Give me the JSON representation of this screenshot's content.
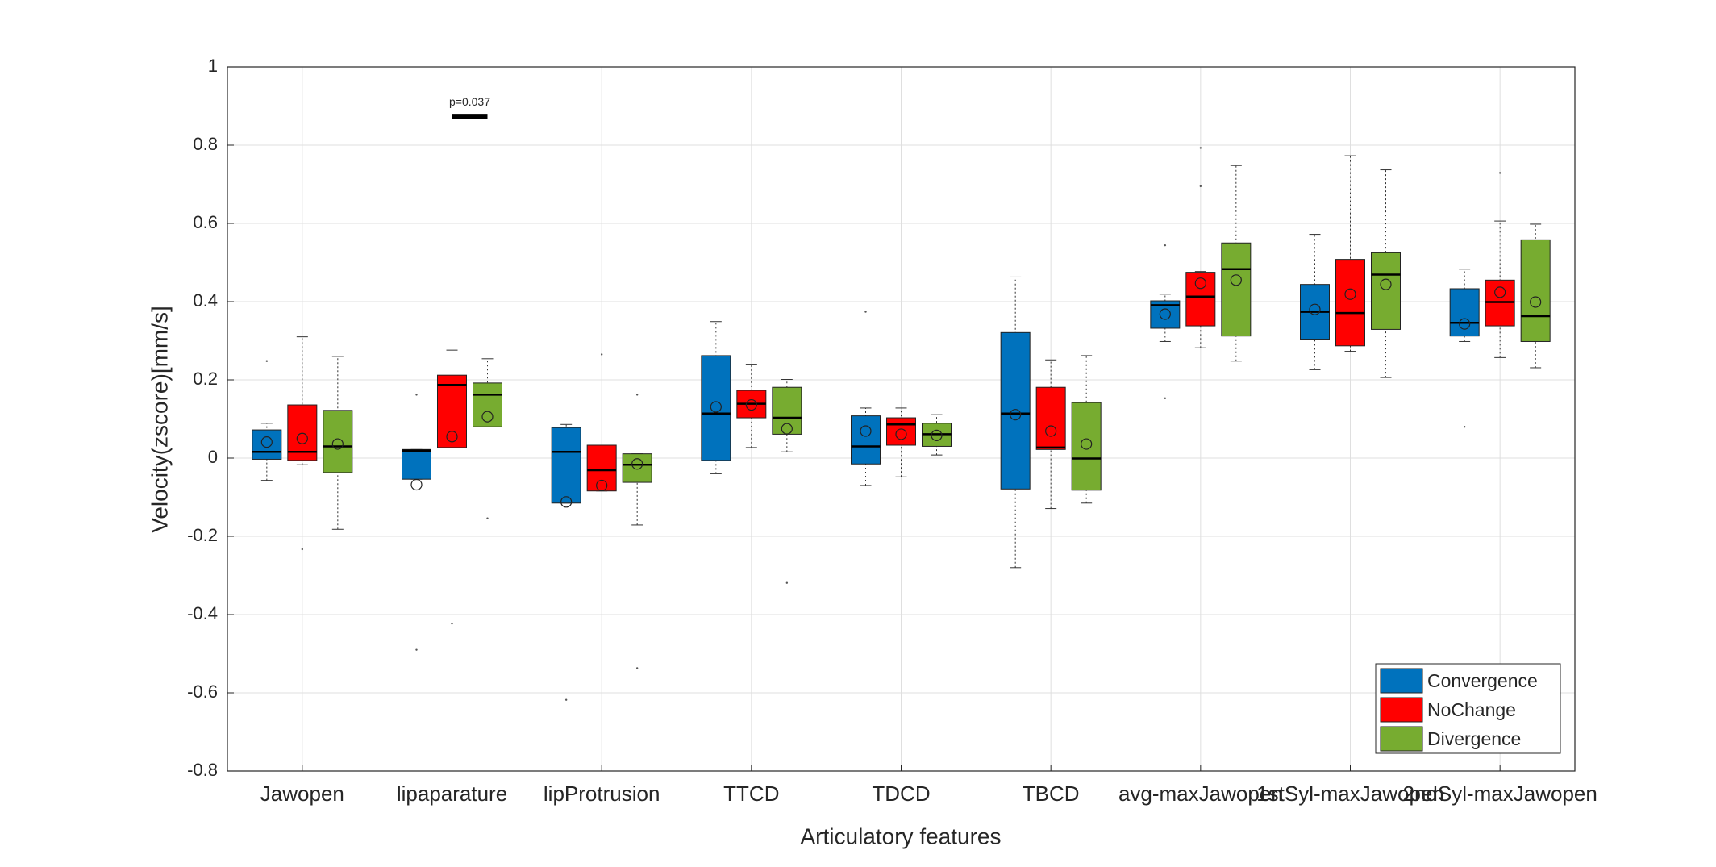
{
  "chart_data": {
    "type": "boxplot",
    "xlabel": "Articulatory features",
    "ylabel": "Velocity(zscore)[mm/s]",
    "categories": [
      "Jawopen",
      "lipaparature",
      "lipProtrusion",
      "TTCD",
      "TDCD",
      "TBCD",
      "avg-maxJawopen",
      "1stSyl-maxJawopen",
      "2ndSyl-maxJawopen"
    ],
    "ylim": [
      -0.8,
      1
    ],
    "yticks": [
      -0.8,
      -0.6,
      -0.4,
      -0.2,
      0,
      0.2,
      0.4,
      0.6,
      0.8,
      1
    ],
    "grid": true,
    "legend": "southeast",
    "annotation": {
      "text": "p=0.037",
      "y": 0.874
    },
    "series": [
      {
        "name": "Convergence",
        "color": "#0072BD",
        "boxes": [
          {
            "whislo": -0.057,
            "q1": -0.003,
            "med": 0.016,
            "q3": 0.072,
            "whishi": 0.089,
            "mean": 0.041,
            "fliers": [
              0.248
            ]
          },
          {
            "whislo": -0.054,
            "q1": -0.054,
            "med": 0.019,
            "q3": 0.022,
            "whishi": 0.022,
            "mean": -0.068,
            "fliers": [
              0.162,
              -0.49
            ]
          },
          {
            "whislo": -0.115,
            "q1": -0.115,
            "med": 0.016,
            "q3": 0.078,
            "whishi": 0.086,
            "mean": -0.112,
            "fliers": [
              -0.618
            ]
          },
          {
            "whislo": -0.04,
            "q1": -0.006,
            "med": 0.114,
            "q3": 0.262,
            "whishi": 0.349,
            "mean": 0.131,
            "fliers": []
          },
          {
            "whislo": -0.07,
            "q1": -0.015,
            "med": 0.03,
            "q3": 0.108,
            "whishi": 0.128,
            "mean": 0.069,
            "fliers": [
              0.374
            ]
          },
          {
            "whislo": -0.28,
            "q1": -0.079,
            "med": 0.114,
            "q3": 0.321,
            "whishi": 0.463,
            "mean": 0.111,
            "fliers": []
          },
          {
            "whislo": 0.298,
            "q1": 0.332,
            "med": 0.391,
            "q3": 0.402,
            "whishi": 0.419,
            "mean": 0.368,
            "fliers": [
              0.544,
              0.153
            ]
          },
          {
            "whislo": 0.226,
            "q1": 0.304,
            "med": 0.374,
            "q3": 0.444,
            "whishi": 0.572,
            "mean": 0.38,
            "fliers": []
          },
          {
            "whislo": 0.298,
            "q1": 0.312,
            "med": 0.346,
            "q3": 0.433,
            "whishi": 0.483,
            "mean": 0.343,
            "fliers": [
              0.08
            ]
          }
        ]
      },
      {
        "name": "NoChange",
        "color": "#FF0000",
        "boxes": [
          {
            "whislo": -0.017,
            "q1": -0.006,
            "med": 0.016,
            "q3": 0.136,
            "whishi": 0.31,
            "mean": 0.05,
            "fliers": [
              -0.233
            ]
          },
          {
            "whislo": 0.027,
            "q1": 0.027,
            "med": 0.187,
            "q3": 0.212,
            "whishi": 0.276,
            "mean": 0.055,
            "fliers": [
              -0.423
            ]
          },
          {
            "whislo": -0.084,
            "q1": -0.084,
            "med": -0.031,
            "q3": 0.033,
            "whishi": 0.033,
            "mean": -0.07,
            "fliers": [
              0.265
            ]
          },
          {
            "whislo": 0.027,
            "q1": 0.103,
            "med": 0.139,
            "q3": 0.173,
            "whishi": 0.24,
            "mean": 0.136,
            "fliers": []
          },
          {
            "whislo": -0.048,
            "q1": 0.033,
            "med": 0.086,
            "q3": 0.103,
            "whishi": 0.128,
            "mean": 0.061,
            "fliers": []
          },
          {
            "whislo": -0.129,
            "q1": 0.022,
            "med": 0.027,
            "q3": 0.181,
            "whishi": 0.251,
            "mean": 0.069,
            "fliers": []
          },
          {
            "whislo": 0.282,
            "q1": 0.338,
            "med": 0.413,
            "q3": 0.475,
            "whishi": 0.477,
            "mean": 0.447,
            "fliers": [
              0.793,
              0.695
            ]
          },
          {
            "whislo": 0.273,
            "q1": 0.287,
            "med": 0.371,
            "q3": 0.508,
            "whishi": 0.773,
            "mean": 0.419,
            "fliers": []
          },
          {
            "whislo": 0.257,
            "q1": 0.338,
            "med": 0.399,
            "q3": 0.455,
            "whishi": 0.606,
            "mean": 0.424,
            "fliers": [
              0.729
            ]
          }
        ]
      },
      {
        "name": "Divergence",
        "color": "#77AC30",
        "boxes": [
          {
            "whislo": -0.182,
            "q1": -0.037,
            "med": 0.03,
            "q3": 0.122,
            "whishi": 0.26,
            "mean": 0.036,
            "fliers": []
          },
          {
            "whislo": 0.08,
            "q1": 0.08,
            "med": 0.162,
            "q3": 0.192,
            "whishi": 0.254,
            "mean": 0.106,
            "fliers": [
              -0.154
            ]
          },
          {
            "whislo": -0.171,
            "q1": -0.062,
            "med": -0.017,
            "q3": 0.011,
            "whishi": 0.011,
            "mean": -0.015,
            "fliers": [
              0.162,
              -0.537
            ]
          },
          {
            "whislo": 0.016,
            "q1": 0.061,
            "med": 0.103,
            "q3": 0.181,
            "whishi": 0.201,
            "mean": 0.075,
            "fliers": [
              -0.319
            ]
          },
          {
            "whislo": 0.008,
            "q1": 0.03,
            "med": 0.061,
            "q3": 0.089,
            "whishi": 0.111,
            "mean": 0.058,
            "fliers": []
          },
          {
            "whislo": -0.115,
            "q1": -0.082,
            "med": -0.001,
            "q3": 0.142,
            "whishi": 0.262,
            "mean": 0.036,
            "fliers": []
          },
          {
            "whislo": 0.248,
            "q1": 0.312,
            "med": 0.483,
            "q3": 0.55,
            "whishi": 0.748,
            "mean": 0.455,
            "fliers": []
          },
          {
            "whislo": 0.206,
            "q1": 0.329,
            "med": 0.469,
            "q3": 0.525,
            "whishi": 0.737,
            "mean": 0.444,
            "fliers": []
          },
          {
            "whislo": 0.231,
            "q1": 0.298,
            "med": 0.363,
            "q3": 0.558,
            "whishi": 0.598,
            "mean": 0.399,
            "fliers": []
          }
        ]
      }
    ]
  }
}
